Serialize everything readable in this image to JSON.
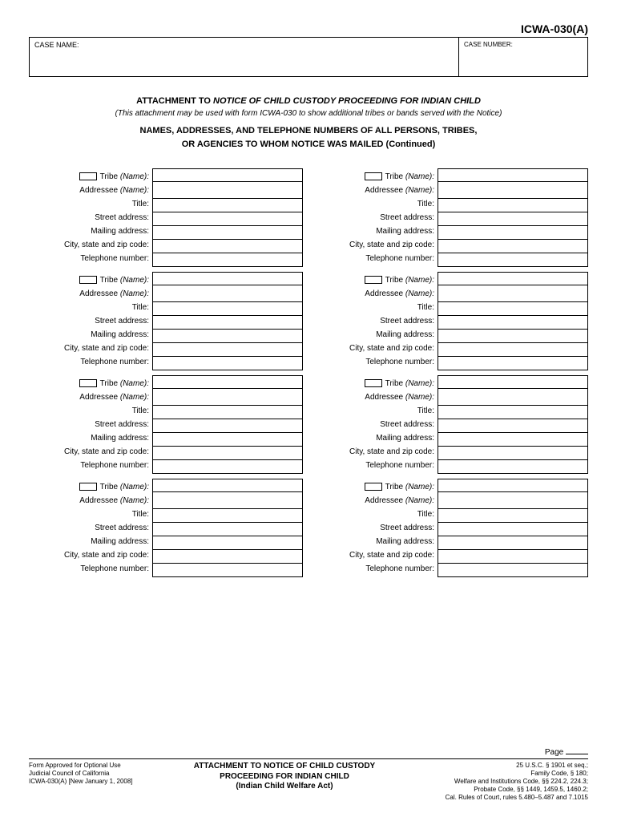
{
  "formId": "ICWA-030(A)",
  "header": {
    "caseNameLabel": "CASE NAME:",
    "caseNumberLabel": "CASE NUMBER:"
  },
  "title": {
    "prefix": "ATTACHMENT TO ",
    "italic": "NOTICE OF CHILD CUSTODY PROCEEDING FOR INDIAN CHILD",
    "sub": "(This attachment may be used with form ICWA-030 to show additional tribes or bands served with the Notice)",
    "line2": "NAMES, ADDRESSES, AND TELEPHONE NUMBERS  OF ALL PERSONS, TRIBES,",
    "line3": "OR AGENCIES TO WHOM NOTICE WAS MAILED (Continued)"
  },
  "fieldLabels": {
    "tribe": "Tribe ",
    "tribeItalic": "(Name):",
    "addressee": "Addressee ",
    "addresseeItalic": "(Name):",
    "title": "Title:",
    "street": "Street address:",
    "mailing": "Mailing address:",
    "cityStateZip": "City, state and zip code:",
    "telephone": "Telephone number:"
  },
  "footer": {
    "pageLabel": "Page",
    "left1": "Form Approved for Optional Use",
    "left2": "Judicial Council of California",
    "left3": "ICWA-030(A) [New January 1, 2008]",
    "center1": "ATTACHMENT TO NOTICE OF CHILD CUSTODY",
    "center2": "PROCEEDING FOR INDIAN CHILD",
    "center3": "(Indian Child Welfare Act)",
    "right1": "25 U.S.C. § 1901 et seq.;",
    "right2": "Family Code, § 180;",
    "right3": "Welfare and Institutions Code, §§ 224.2, 224.3;",
    "right4": "Probate Code, §§  1449, 1459.5, 1460.2;",
    "right5": "Cal. Rules of Court, rules 5.480–5.487 and 7.1015"
  }
}
